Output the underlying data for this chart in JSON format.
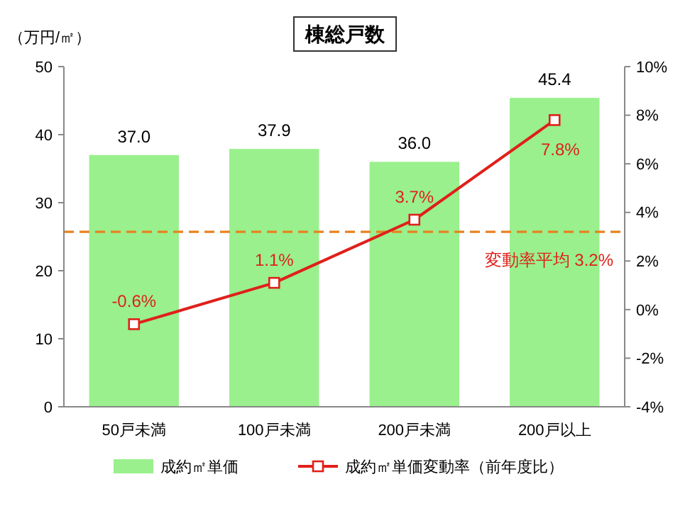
{
  "chart_data": {
    "type": "bar",
    "title": "棟総戸数",
    "ylabel": "（万円/㎡）",
    "categories": [
      "50戸未満",
      "100戸未満",
      "200戸未満",
      "200戸以上"
    ],
    "series": [
      {
        "name": "成約㎡単価",
        "color": "#99f08c",
        "values": [
          37.0,
          37.9,
          36.0,
          45.4
        ],
        "value_labels": [
          "37.0",
          "37.9",
          "36.0",
          "45.4"
        ]
      },
      {
        "name": "成約㎡単価変動率（前年度比）",
        "type": "line",
        "axis": "y2",
        "color": "#e0201a",
        "marker": "square",
        "values": [
          -0.6,
          1.1,
          3.7,
          7.8
        ],
        "value_labels": [
          "-0.6%",
          "1.1%",
          "3.7%",
          "7.8%"
        ]
      }
    ],
    "ylim": [
      0,
      50
    ],
    "yticks": [
      0,
      10,
      20,
      30,
      40,
      50
    ],
    "y2lim": [
      -4,
      10
    ],
    "y2ticks": [
      {
        "value": -4,
        "label": "-4%"
      },
      {
        "value": -2,
        "label": "-2%"
      },
      {
        "value": 0,
        "label": "0%"
      },
      {
        "value": 2,
        "label": "2%"
      },
      {
        "value": 4,
        "label": "4%"
      },
      {
        "value": 6,
        "label": "6%"
      },
      {
        "value": 8,
        "label": "8%"
      },
      {
        "value": 10,
        "label": "10%"
      }
    ],
    "ref_lines": [
      {
        "axis": "y2",
        "value": 3.2,
        "label": "変動率平均 3.2%",
        "color": "#e8821e",
        "line_style": "dashed"
      }
    ],
    "grid": false,
    "legend": "bottom"
  }
}
